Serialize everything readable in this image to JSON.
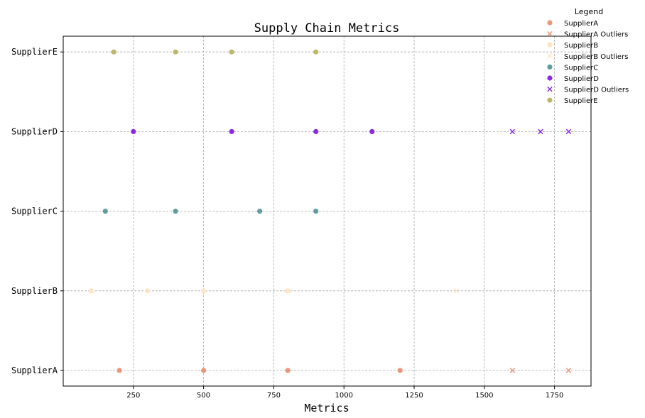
{
  "chart_data": {
    "type": "scatter",
    "title": "Supply Chain Metrics",
    "xlabel": "Metrics",
    "ylabel": "",
    "xlim": [
      0,
      1880
    ],
    "x_ticks": [
      250,
      500,
      750,
      1000,
      1250,
      1500,
      1750
    ],
    "categories": [
      "SupplierA",
      "SupplierB",
      "SupplierC",
      "SupplierD",
      "SupplierE"
    ],
    "grid": true,
    "legend": {
      "title": "Legend",
      "placement": "top-right outside"
    },
    "series": [
      {
        "name": "SupplierA",
        "category": "SupplierA",
        "marker": "circle",
        "color": "#E9967A",
        "x": [
          200,
          500,
          800,
          1200
        ]
      },
      {
        "name": "SupplierA Outliers",
        "category": "SupplierA",
        "marker": "x",
        "color": "#E9967A",
        "x": [
          1600,
          1800
        ]
      },
      {
        "name": "SupplierB",
        "category": "SupplierB",
        "marker": "circle",
        "color": "#FFE4C4",
        "x": [
          100,
          300,
          500,
          800
        ]
      },
      {
        "name": "SupplierB Outliers",
        "category": "SupplierB",
        "marker": "x",
        "color": "#FFE4C4",
        "x": [
          1400
        ]
      },
      {
        "name": "SupplierC",
        "category": "SupplierC",
        "marker": "circle",
        "color": "#5F9EA0",
        "x": [
          150,
          400,
          700,
          900
        ]
      },
      {
        "name": "SupplierD",
        "category": "SupplierD",
        "marker": "circle",
        "color": "#8A2BE2",
        "x": [
          250,
          600,
          900,
          1100
        ]
      },
      {
        "name": "SupplierD Outliers",
        "category": "SupplierD",
        "marker": "x",
        "color": "#8A2BE2",
        "x": [
          1600,
          1700,
          1800
        ]
      },
      {
        "name": "SupplierE",
        "category": "SupplierE",
        "marker": "circle",
        "color": "#BDB76B",
        "x": [
          180,
          400,
          600,
          900
        ]
      }
    ]
  }
}
